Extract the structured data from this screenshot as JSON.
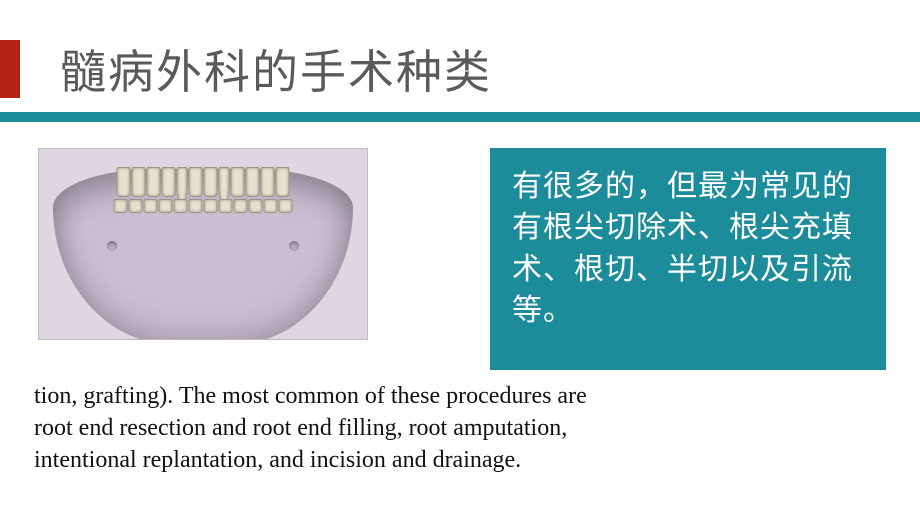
{
  "title": "髓病外科的手术种类",
  "title_color": "#5a5a5a",
  "title_fontsize": 46,
  "accent_color": "#b22215",
  "divider_color": "#1c8c9a",
  "callout": {
    "text": "有很多的，但最为常见的有根尖切除术、根尖充填术、根切、半切以及引流等。",
    "background": "#1c8c9a",
    "text_color": "#ffffff",
    "fontsize": 30
  },
  "caption": {
    "lines": [
      "tion, grafting). The most common of these procedures are",
      "root end resection and root end filling, root amputation,",
      "intentional replantation, and incision and drainage."
    ],
    "fontsize": 24,
    "color": "#111111"
  },
  "figure": {
    "description": "jaw-skull-anterior-photo",
    "background": "#ded7e2",
    "bone_color": "#c9bed2",
    "tooth_color": "#e9e0cf"
  }
}
